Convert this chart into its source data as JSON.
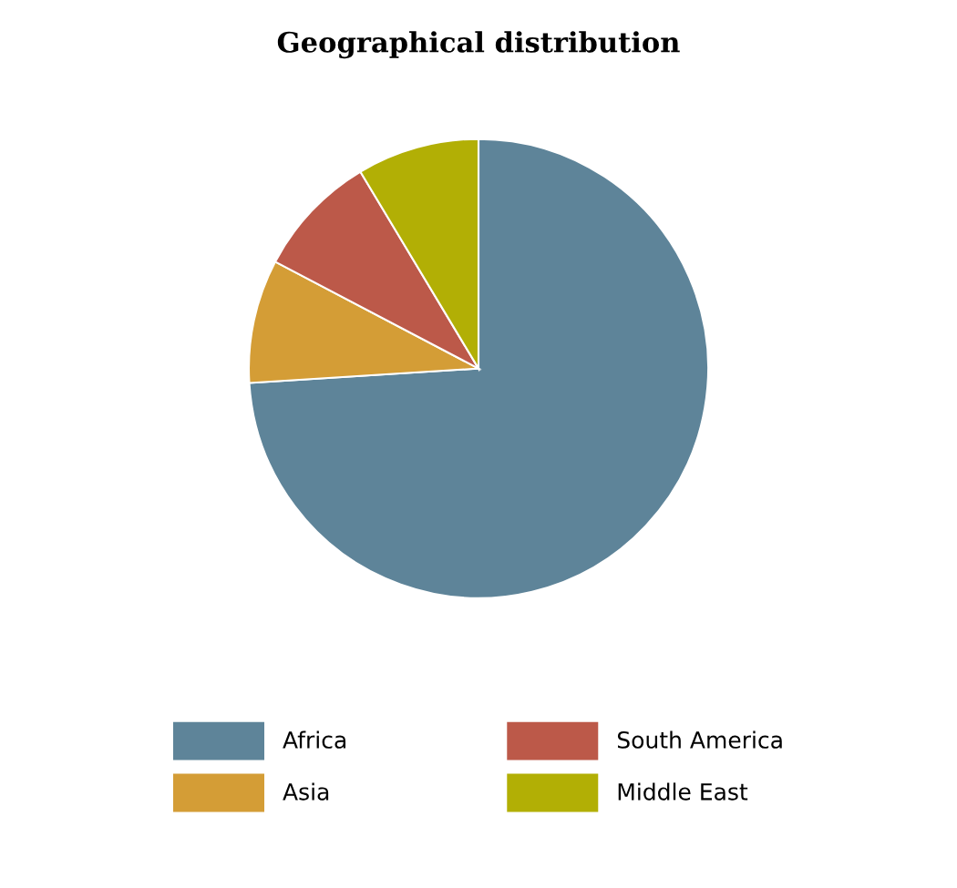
{
  "chart_data": {
    "type": "pie",
    "title": "Geographical distribution",
    "categories": [
      "Africa",
      "Asia",
      "South America",
      "Middle East"
    ],
    "values": [
      74,
      8.7,
      8.7,
      8.6
    ],
    "colors": [
      "#5e8499",
      "#d49d36",
      "#bc5949",
      "#b2af05"
    ],
    "legend": "bottom"
  }
}
